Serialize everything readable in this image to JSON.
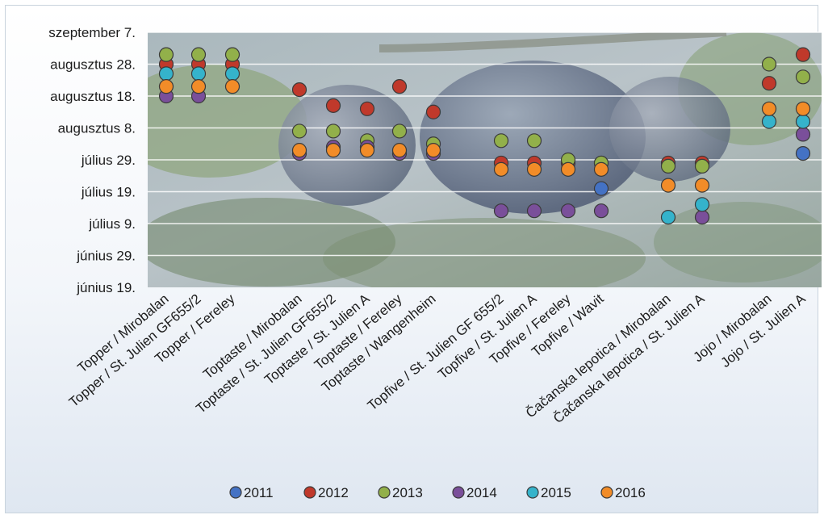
{
  "chart_data": {
    "type": "scatter",
    "title": "",
    "xlabel": "",
    "ylabel": "",
    "y_ticks": [
      "június 19.",
      "június 29.",
      "július 9.",
      "július 19.",
      "július 29.",
      "augusztus 8.",
      "augusztus 18.",
      "augusztus 28.",
      "szeptember 7."
    ],
    "ylim": [
      "június 19.",
      "szeptember 7."
    ],
    "grid": true,
    "legend_position": "bottom",
    "categories": [
      "Topper / Mirobalan",
      "Topper / St. Julien GF655/2",
      "Topper / Fereley",
      "Toptaste / Mirobalan",
      "Toptaste / St. Julien GF655/2",
      "Toptaste / St. Julien A",
      "Toptaste / Fereley",
      "Toptaste / Wangenheim",
      "Topfive / St. Julien GF 655/2",
      "Topfive / St. Julien A",
      "Topfive / Fereley",
      "Topfive / Wavit",
      "Čačanska lepotica / Mirobalan",
      "Čačanska lepotica / St. Julien A",
      "Jojo / Mirobalan",
      "Jojo / St. Julien A"
    ],
    "series": [
      {
        "name": "2011",
        "color": "#4472c4",
        "values": [
          null,
          null,
          null,
          null,
          null,
          null,
          null,
          null,
          null,
          null,
          null,
          "július 20.",
          null,
          null,
          null,
          "július 31."
        ]
      },
      {
        "name": "2012",
        "color": "#c0392b",
        "values": [
          "augusztus 28.",
          "augusztus 28.",
          "augusztus 28.",
          "augusztus 20.",
          "augusztus 15.",
          "augusztus 14.",
          "augusztus 21.",
          "augusztus 13.",
          "július 28.",
          "július 28.",
          "július 28.",
          "július 28.",
          "július 28.",
          "július 28.",
          "augusztus 22.",
          "augusztus 31."
        ]
      },
      {
        "name": "2013",
        "color": "#92b04a",
        "values": [
          "augusztus 31.",
          "augusztus 31.",
          "augusztus 31.",
          "augusztus 7.",
          "augusztus 7.",
          "augusztus 4.",
          "augusztus 7.",
          "augusztus 3.",
          "augusztus 4.",
          "augusztus 4.",
          "július 29.",
          "július 28.",
          "július 27.",
          "július 27.",
          "augusztus 28.",
          "augusztus 24."
        ]
      },
      {
        "name": "2014",
        "color": "#7a4f9a",
        "values": [
          "augusztus 18.",
          "augusztus 18.",
          null,
          "július 31.",
          "augusztus 2.",
          "augusztus 2.",
          "július 31.",
          "július 31.",
          "július 13.",
          "július 13.",
          "július 13.",
          "július 13.",
          null,
          "július 11.",
          null,
          "augusztus 6."
        ]
      },
      {
        "name": "2015",
        "color": "#35b3cb",
        "values": [
          "augusztus 25.",
          "augusztus 25.",
          "augusztus 25.",
          null,
          null,
          null,
          null,
          null,
          null,
          null,
          null,
          null,
          "július 11.",
          "július 15.",
          "augusztus 10.",
          "augusztus 10."
        ]
      },
      {
        "name": "2016",
        "color": "#f28c28",
        "values": [
          "augusztus 21.",
          "augusztus 21.",
          "augusztus 21.",
          "augusztus 1.",
          "augusztus 1.",
          "augusztus 1.",
          "augusztus 1.",
          "augusztus 1.",
          "július 26.",
          "július 26.",
          "július 26.",
          "július 26.",
          "július 21.",
          "július 21.",
          "augusztus 14.",
          "augusztus 14."
        ]
      }
    ]
  }
}
